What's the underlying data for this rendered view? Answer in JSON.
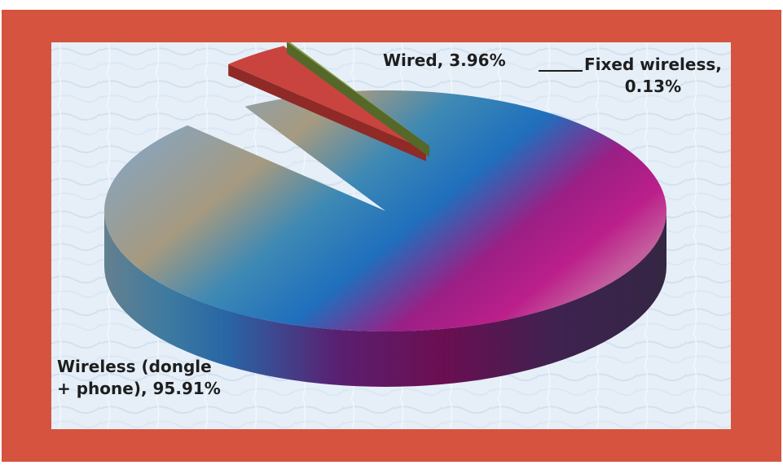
{
  "chart_data": {
    "type": "pie",
    "style": "3d-exploded",
    "slices": [
      {
        "label": "Wireless (dongle + phone)",
        "value": 95.91,
        "display": "Wireless (dongle\n+ phone), 95.91%",
        "color": "#8a1f7a"
      },
      {
        "label": "Wired",
        "value": 3.96,
        "display": "Wired, 3.96%",
        "color": "#c9443f"
      },
      {
        "label": "Fixed wireless",
        "value": 0.13,
        "display": "Fixed wireless,\n0.13%",
        "color": "#7f9a3a"
      }
    ],
    "legend": "none",
    "title": ""
  },
  "colors": {
    "frame": "#d5533f",
    "plot_background": "#e8f1f9",
    "label_text": "#1e1e1e"
  }
}
